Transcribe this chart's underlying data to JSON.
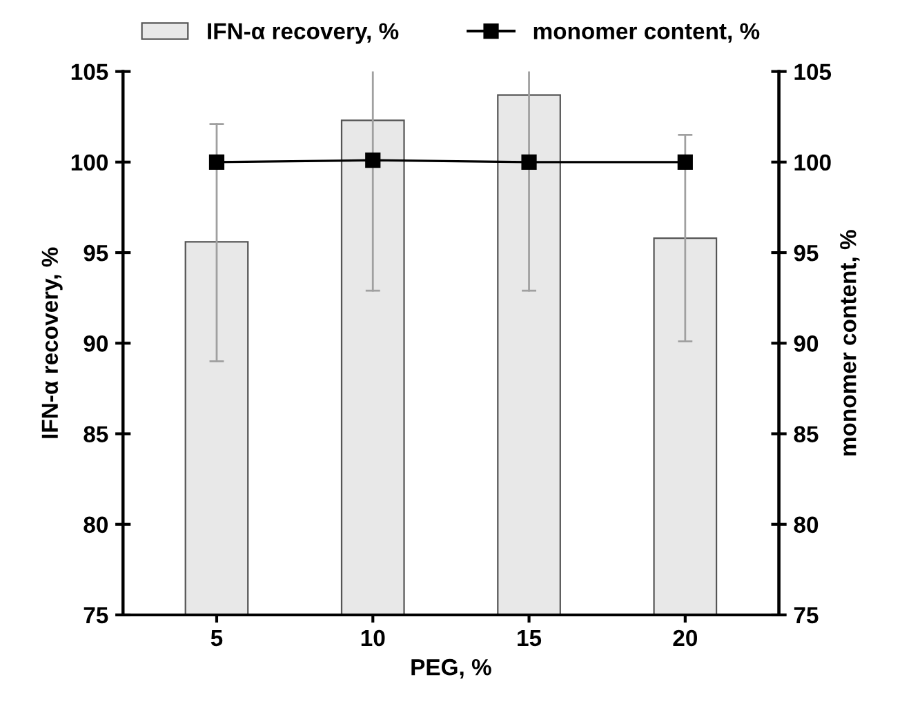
{
  "chart_data": {
    "type": "bar",
    "xlabel": "PEG, %",
    "ylabel": "IFN-α recovery, %",
    "y2label": "monomer content, %",
    "categories": [
      "5",
      "10",
      "15",
      "20"
    ],
    "series": [
      {
        "name": "IFN-α recovery, %",
        "color": "#e8e8e8",
        "values": [
          95.6,
          102.3,
          103.7,
          95.8
        ],
        "errors": [
          [
            89.0,
            102.1
          ],
          [
            92.9,
            105
          ],
          [
            92.9,
            105
          ],
          [
            90.1,
            101.5
          ]
        ]
      },
      {
        "name": "monomer content, %",
        "type": "line",
        "axis": "y2",
        "color": "#000000",
        "marker": "square",
        "values": [
          100.0,
          100.1,
          100.0,
          100.0
        ]
      }
    ],
    "ylim": [
      75,
      105
    ],
    "yticks": [
      75,
      80,
      85,
      90,
      95,
      100,
      105
    ],
    "y2lim": [
      75,
      105
    ],
    "y2ticks": [
      75,
      80,
      85,
      90,
      95,
      100,
      105
    ],
    "grid": false,
    "legend": "top"
  }
}
